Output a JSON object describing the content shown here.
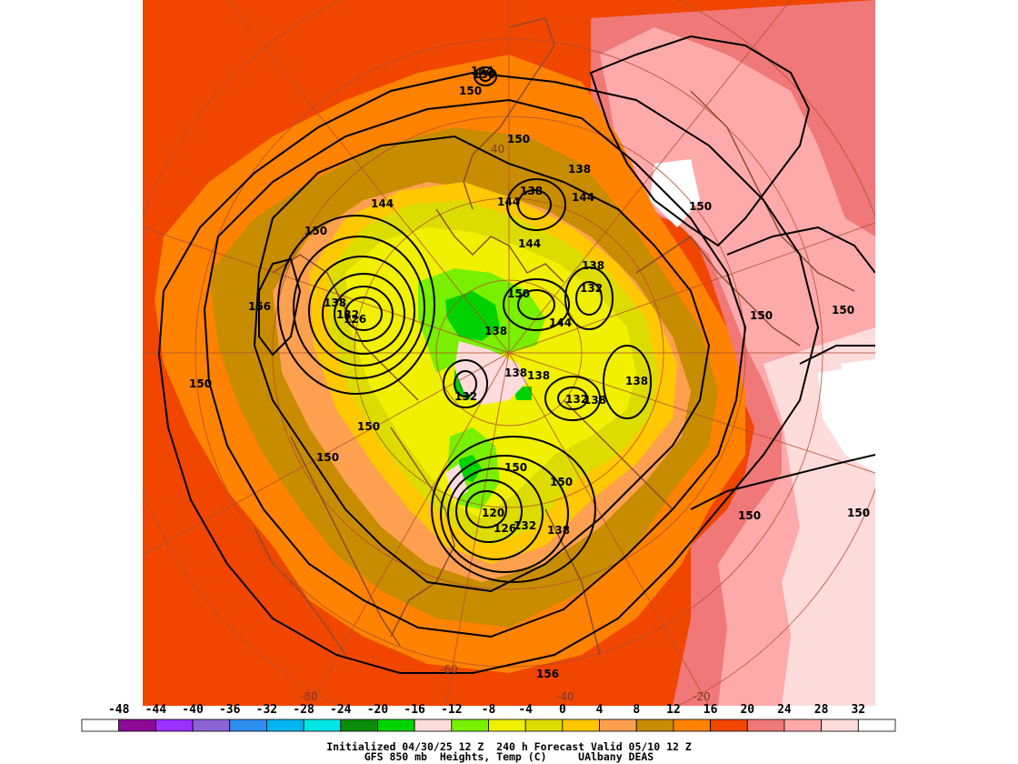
{
  "product": {
    "line1": "Initialized 04/30/25 12 Z  240 h Forecast Valid 05/10 12 Z",
    "line2": "GFS 850 mb  Heights, Temp (C)     UAlbany DEAS"
  },
  "legend": {
    "values": [
      "-48",
      "-44",
      "-40",
      "-36",
      "-32",
      "-28",
      "-24",
      "-20",
      "-16",
      "-12",
      "-8",
      "-4",
      "0",
      "4",
      "8",
      "12",
      "16",
      "20",
      "24",
      "28",
      "32"
    ],
    "colors": [
      "#ffffff",
      "#8c0a96",
      "#9b30ff",
      "#8c64d2",
      "#2e8ff0",
      "#00b4f0",
      "#00e6e6",
      "#0a8c0a",
      "#00d200",
      "#ffdcdc",
      "#78f000",
      "#f0f000",
      "#dcdc00",
      "#ffc800",
      "#ffa050",
      "#c88c00",
      "#ff8200",
      "#f04600",
      "#f07878",
      "#ffaaaa",
      "#ffdcdc",
      "#ffffff"
    ]
  },
  "map_labels": {
    "height_labels": [
      "144",
      "150",
      "150",
      "138",
      "144",
      "144",
      "138",
      "150",
      "144",
      "144",
      "150",
      "150",
      "138",
      "132",
      "138",
      "126",
      "150",
      "138",
      "150",
      "156",
      "150",
      "150",
      "150",
      "150",
      "138",
      "138",
      "132",
      "132",
      "138",
      "138",
      "150",
      "144",
      "150",
      "132",
      "120",
      "126",
      "132",
      "138",
      "150",
      "150",
      "156"
    ],
    "grid_labels": [
      "40",
      "-80",
      "-60",
      "-40",
      "-20"
    ]
  }
}
